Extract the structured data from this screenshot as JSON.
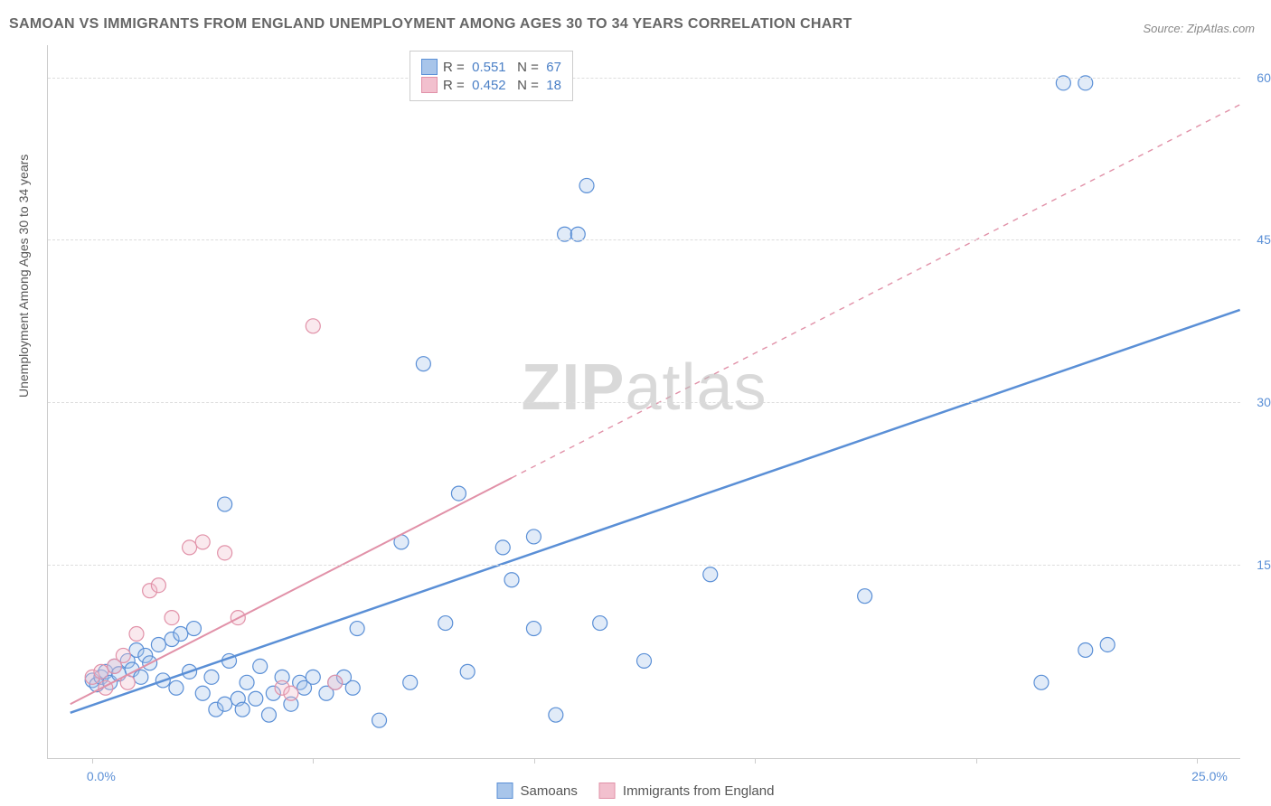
{
  "title": "SAMOAN VS IMMIGRANTS FROM ENGLAND UNEMPLOYMENT AMONG AGES 30 TO 34 YEARS CORRELATION CHART",
  "source": "Source: ZipAtlas.com",
  "ylabel": "Unemployment Among Ages 30 to 34 years",
  "watermark_bold": "ZIP",
  "watermark_light": "atlas",
  "chart": {
    "type": "scatter",
    "background_color": "#ffffff",
    "grid_color": "#dddddd",
    "axis_color": "#cccccc",
    "tick_label_color": "#5a8fd6",
    "xlim": [
      -1,
      26
    ],
    "ylim": [
      -3,
      63
    ],
    "xtick_positions": [
      0,
      5,
      10,
      15,
      20,
      25
    ],
    "xtick_labels": [
      "0.0%",
      "",
      "",
      "",
      "",
      "25.0%"
    ],
    "ytick_positions": [
      15,
      30,
      45,
      60
    ],
    "ytick_labels": [
      "15.0%",
      "30.0%",
      "45.0%",
      "60.0%"
    ],
    "marker_radius": 8,
    "marker_stroke_width": 1.2,
    "marker_fill_opacity": 0.35,
    "series": [
      {
        "name": "Samoans",
        "color": "#5a8fd6",
        "fill": "#a8c5ea",
        "r_value": "0.551",
        "n_value": "67",
        "trend": {
          "x1": -0.5,
          "y1": 1.2,
          "x2": 26,
          "y2": 38.5,
          "solid_until_x": 26,
          "width": 2.5
        },
        "points": [
          [
            0.0,
            4.2
          ],
          [
            0.1,
            3.8
          ],
          [
            0.2,
            4.5
          ],
          [
            0.3,
            5.0
          ],
          [
            0.4,
            4.0
          ],
          [
            0.5,
            5.5
          ],
          [
            0.6,
            4.8
          ],
          [
            0.8,
            6.0
          ],
          [
            0.9,
            5.2
          ],
          [
            1.0,
            7.0
          ],
          [
            1.1,
            4.5
          ],
          [
            1.2,
            6.5
          ],
          [
            1.3,
            5.8
          ],
          [
            1.5,
            7.5
          ],
          [
            1.6,
            4.2
          ],
          [
            1.8,
            8.0
          ],
          [
            1.9,
            3.5
          ],
          [
            2.0,
            8.5
          ],
          [
            2.2,
            5.0
          ],
          [
            2.3,
            9.0
          ],
          [
            2.5,
            3.0
          ],
          [
            2.7,
            4.5
          ],
          [
            2.8,
            1.5
          ],
          [
            3.0,
            2.0
          ],
          [
            3.1,
            6.0
          ],
          [
            3.3,
            2.5
          ],
          [
            3.4,
            1.5
          ],
          [
            3.5,
            4.0
          ],
          [
            3.7,
            2.5
          ],
          [
            3.8,
            5.5
          ],
          [
            4.0,
            1.0
          ],
          [
            4.1,
            3.0
          ],
          [
            4.3,
            4.5
          ],
          [
            4.5,
            2.0
          ],
          [
            4.7,
            4.0
          ],
          [
            4.8,
            3.5
          ],
          [
            5.0,
            4.5
          ],
          [
            5.3,
            3.0
          ],
          [
            5.5,
            4.0
          ],
          [
            5.7,
            4.5
          ],
          [
            5.9,
            3.5
          ],
          [
            6.0,
            9.0
          ],
          [
            3.0,
            20.5
          ],
          [
            6.5,
            0.5
          ],
          [
            7.0,
            17.0
          ],
          [
            7.2,
            4.0
          ],
          [
            7.5,
            33.5
          ],
          [
            8.0,
            9.5
          ],
          [
            8.3,
            21.5
          ],
          [
            8.5,
            5.0
          ],
          [
            9.3,
            16.5
          ],
          [
            9.5,
            13.5
          ],
          [
            10.0,
            9.0
          ],
          [
            10.0,
            17.5
          ],
          [
            10.5,
            1.0
          ],
          [
            10.7,
            45.5
          ],
          [
            11.0,
            45.5
          ],
          [
            11.2,
            50.0
          ],
          [
            11.5,
            9.5
          ],
          [
            12.5,
            6.0
          ],
          [
            14.0,
            14.0
          ],
          [
            17.5,
            12.0
          ],
          [
            21.5,
            4.0
          ],
          [
            22.0,
            59.5
          ],
          [
            22.5,
            59.5
          ],
          [
            22.5,
            7.0
          ],
          [
            23.0,
            7.5
          ]
        ]
      },
      {
        "name": "Immigrants from England",
        "color": "#e191a8",
        "fill": "#f2c0ce",
        "r_value": "0.452",
        "n_value": "18",
        "trend": {
          "x1": -0.5,
          "y1": 2.0,
          "x2": 26,
          "y2": 57.5,
          "solid_until_x": 9.5,
          "width": 2.0
        },
        "points": [
          [
            0.0,
            4.5
          ],
          [
            0.2,
            5.0
          ],
          [
            0.3,
            3.5
          ],
          [
            0.5,
            5.5
          ],
          [
            0.7,
            6.5
          ],
          [
            0.8,
            4.0
          ],
          [
            1.0,
            8.5
          ],
          [
            1.3,
            12.5
          ],
          [
            1.5,
            13.0
          ],
          [
            1.8,
            10.0
          ],
          [
            2.2,
            16.5
          ],
          [
            2.5,
            17.0
          ],
          [
            3.0,
            16.0
          ],
          [
            3.3,
            10.0
          ],
          [
            4.3,
            3.5
          ],
          [
            4.5,
            3.0
          ],
          [
            5.0,
            37.0
          ],
          [
            5.5,
            4.0
          ]
        ]
      }
    ],
    "legend_top": {
      "r_label": "R  =",
      "n_label": "N  =",
      "text_color": "#555555",
      "value_color": "#4a7fc6"
    },
    "legend_bottom": {
      "items": [
        "Samoans",
        "Immigrants from England"
      ]
    }
  }
}
